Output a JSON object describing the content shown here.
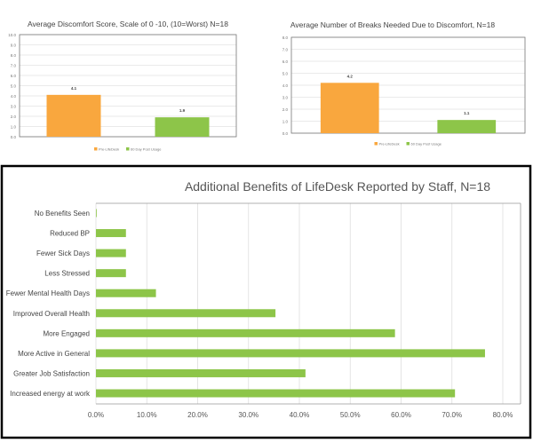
{
  "chart_data": [
    {
      "type": "bar",
      "title": "Average Discomfort Score, Scale of 0 -10, (10=Worst)   N=18",
      "categories": [
        "Pre-LifeDesk",
        "60 Day Post Usage"
      ],
      "values": [
        4.1,
        1.9
      ],
      "data_labels": [
        "4.1",
        "1.9"
      ],
      "colors": [
        "#f9a73e",
        "#8dc549"
      ],
      "ylim": [
        0,
        10
      ],
      "yticks": [
        "0.0",
        "1.0",
        "2.0",
        "3.0",
        "4.0",
        "5.0",
        "6.0",
        "7.0",
        "8.0",
        "9.0",
        "10.0"
      ],
      "grid": true,
      "legend": "bottom"
    },
    {
      "type": "bar",
      "title": "Average Number of Breaks Needed Due to Discomfort, N=18",
      "categories": [
        "Pre-LifeDesk",
        "60 Day Post Usage"
      ],
      "values": [
        4.2,
        1.1
      ],
      "data_labels": [
        "4.2",
        "1.1"
      ],
      "colors": [
        "#f9a73e",
        "#8dc549"
      ],
      "ylim": [
        0,
        8
      ],
      "yticks": [
        "0.0",
        "1.0",
        "2.0",
        "3.0",
        "4.0",
        "5.0",
        "6.0",
        "7.0",
        "8.0"
      ],
      "grid": true,
      "legend": "bottom"
    },
    {
      "type": "bar",
      "orientation": "horizontal",
      "title": "Additional Benefits of LifeDesk Reported by Staff, N=18",
      "categories": [
        "No Benefits Seen",
        "Reduced BP",
        "Fewer Sick Days",
        "Less Stressed",
        "Fewer Mental Health Days",
        "Improved Overall Health",
        "More Engaged",
        "More Active in General",
        "Greater Job Satisfaction",
        "Increased energy at work"
      ],
      "values": [
        0.0,
        5.9,
        5.9,
        5.9,
        11.8,
        35.3,
        58.8,
        76.5,
        41.2,
        70.6
      ],
      "color": "#8dc549",
      "xlim": [
        0,
        80
      ],
      "xticks": [
        "0.0%",
        "10.0%",
        "20.0%",
        "30.0%",
        "40.0%",
        "50.0%",
        "60.0%",
        "70.0%",
        "80.0%"
      ],
      "grid": true
    }
  ]
}
